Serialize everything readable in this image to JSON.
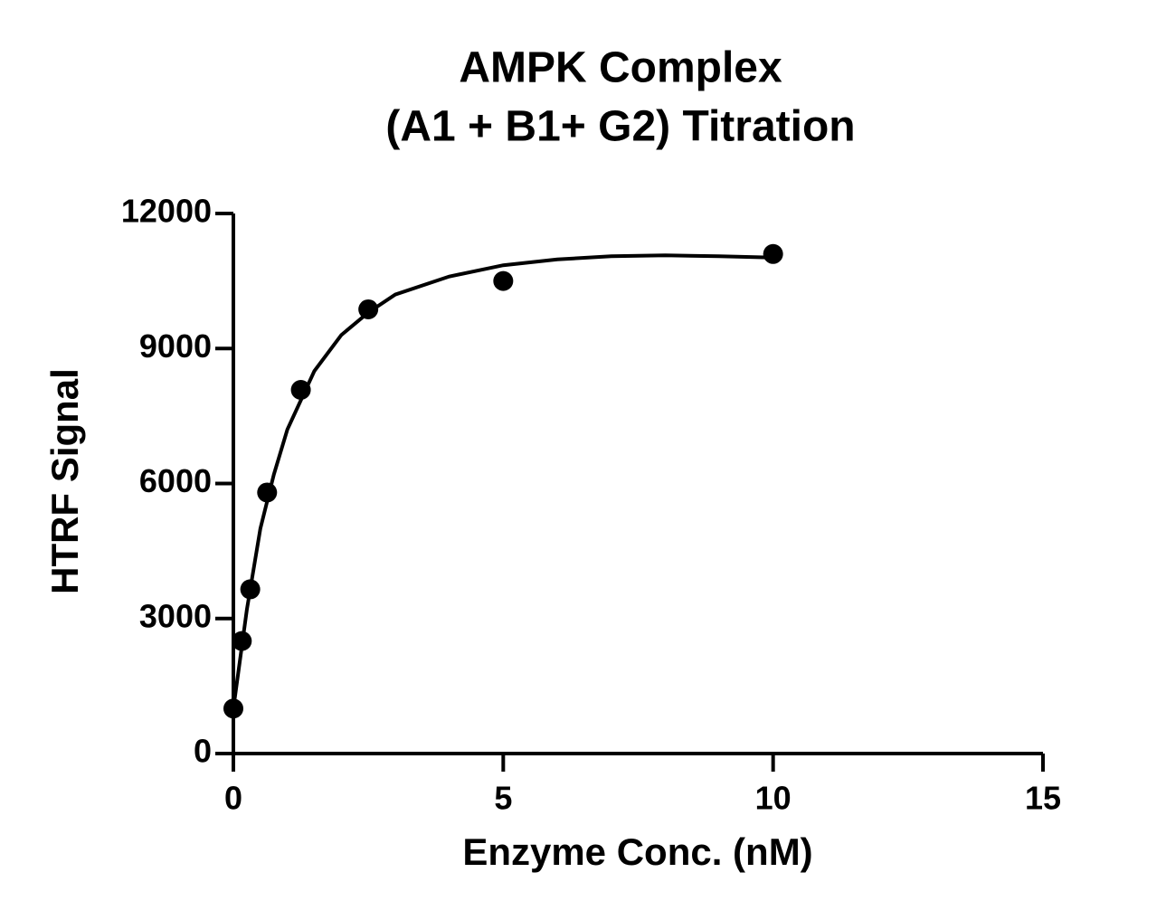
{
  "chart_data": {
    "type": "scatter",
    "title": [
      "AMPK Complex",
      "(A1 + B1+ G2) Titration"
    ],
    "x_label": "Enzyme Conc. (nM)",
    "y_label": "HTRF Signal",
    "series": [
      {
        "name": "data",
        "color": "#000000",
        "x": [
          0,
          0.156,
          0.3125,
          0.625,
          1.25,
          2.5,
          5,
          10
        ],
        "values": [
          1000,
          2500,
          3650,
          5800,
          8080,
          9870,
          10500,
          11100
        ]
      },
      {
        "name": "fit",
        "color": "#000000",
        "x": [
          0,
          0.25,
          0.5,
          0.75,
          1,
          1.5,
          2,
          2.5,
          3,
          4,
          5,
          6,
          7,
          8,
          9,
          10
        ],
        "values": [
          1000,
          3200,
          5000,
          6200,
          7200,
          8500,
          9300,
          9800,
          10200,
          10600,
          10850,
          10980,
          11050,
          11070,
          11050,
          11020
        ]
      }
    ],
    "xlim": [
      0,
      15
    ],
    "xticks": [
      0,
      5,
      10,
      15
    ],
    "ylim": [
      0,
      12000
    ],
    "yticks": [
      0,
      3000,
      6000,
      9000,
      12000
    ],
    "grid": false
  }
}
